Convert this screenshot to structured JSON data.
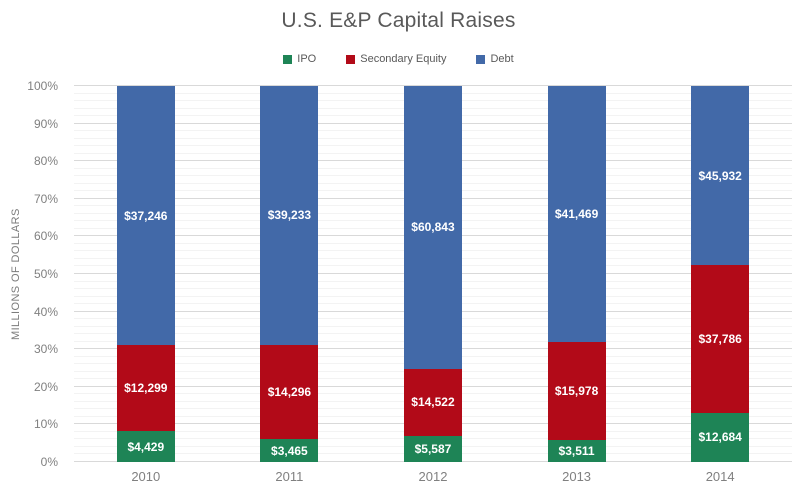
{
  "title": "U.S. E&P Capital Raises",
  "legend": [
    {
      "label": "IPO",
      "color": "#1E8456"
    },
    {
      "label": "Secondary Equity",
      "color": "#B20A18"
    },
    {
      "label": "Debt",
      "color": "#4269A8"
    }
  ],
  "y_axis": {
    "title": "MILLIONS OF DOLLARS",
    "ticks": [
      "0%",
      "10%",
      "20%",
      "30%",
      "40%",
      "50%",
      "60%",
      "70%",
      "80%",
      "90%",
      "100%"
    ]
  },
  "chart_data": {
    "type": "bar",
    "subtype": "100-percent-stacked",
    "title": "U.S. E&P Capital Raises",
    "xlabel": "",
    "ylabel": "MILLIONS OF DOLLARS",
    "ylim": [
      0,
      100
    ],
    "y_tick_step_major": 10,
    "y_tick_step_minor": 2,
    "grid": "on",
    "legend_position": "top",
    "categories": [
      "2010",
      "2011",
      "2012",
      "2013",
      "2014"
    ],
    "series": [
      {
        "name": "IPO",
        "color": "#1E8456",
        "values": [
          4429,
          3465,
          5587,
          3511,
          12684
        ],
        "labels": [
          "$4,429",
          "$3,465",
          "$5,587",
          "$3,511",
          "$12,684"
        ]
      },
      {
        "name": "Secondary Equity",
        "color": "#B20A18",
        "values": [
          12299,
          14296,
          14522,
          15978,
          37786
        ],
        "labels": [
          "$12,299",
          "$14,296",
          "$14,522",
          "$15,978",
          "$37,786"
        ]
      },
      {
        "name": "Debt",
        "color": "#4269A8",
        "values": [
          37246,
          39233,
          60843,
          41469,
          45932
        ],
        "labels": [
          "$37,246",
          "$39,233",
          "$60,843",
          "$41,469",
          "$45,932"
        ]
      }
    ],
    "gridline_colors": {
      "major": "#D9D9D9",
      "minor": "#F3F3F3"
    }
  }
}
